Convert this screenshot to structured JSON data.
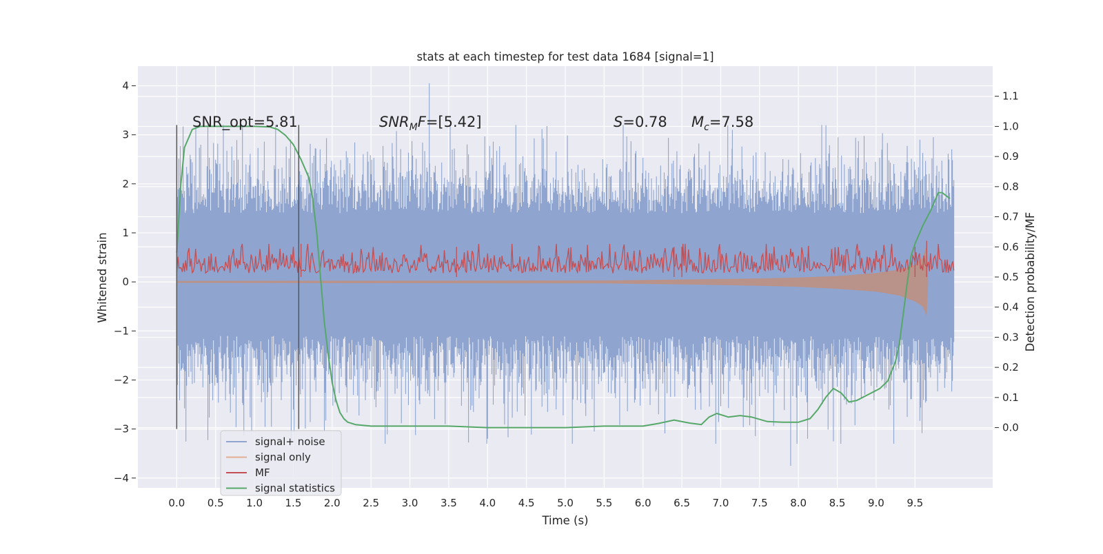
{
  "chart_data": {
    "type": "line",
    "title": "stats at each timestep for test data 1684 [signal=1]",
    "xlabel": "Time (s)",
    "ylabel_left": "Whitened strain",
    "ylabel_right": "Detection probability/MF",
    "xlim": [
      -0.5,
      10.5
    ],
    "ylim_left": [
      -4.2,
      4.4
    ],
    "ylim_right": [
      -0.2,
      1.2
    ],
    "x_ticks": [
      "0.0",
      "0.5",
      "1.0",
      "1.5",
      "2.0",
      "2.5",
      "3.0",
      "3.5",
      "4.0",
      "4.5",
      "5.0",
      "5.5",
      "6.0",
      "6.5",
      "7.0",
      "7.5",
      "8.0",
      "8.5",
      "9.0",
      "9.5"
    ],
    "y_ticks_left": [
      "4",
      "3",
      "2",
      "1",
      "0",
      "−1",
      "−2",
      "−3",
      "−4"
    ],
    "y_ticks_right": [
      "1.1",
      "1.0",
      "0.9",
      "0.8",
      "0.7",
      "0.6",
      "0.5",
      "0.4",
      "0.3",
      "0.2",
      "0.1",
      "0.0"
    ],
    "grid": true,
    "legend_position": "bottom-left",
    "series": [
      {
        "name": "signal+ noise",
        "color": "#8fa5cf",
        "axis": "left",
        "x": [
          0.0,
          10.0
        ],
        "envelope": {
          "typical_min": -2.0,
          "typical_max": 2.0,
          "dense_band_min": -1.1,
          "dense_band_max": 1.4,
          "extreme_max": 4.05,
          "extreme_max_at": 3.25,
          "extreme_min": -3.75,
          "extreme_min_at": 7.9
        }
      },
      {
        "name": "signal only",
        "color": "#dd8452",
        "axis": "left",
        "x": [
          0.0,
          5.5,
          6.5,
          7.5,
          8.0,
          8.5,
          9.0,
          9.3,
          9.5,
          9.6,
          9.65,
          9.67
        ],
        "upper": [
          0.02,
          0.03,
          0.05,
          0.07,
          0.09,
          0.12,
          0.18,
          0.25,
          0.35,
          0.5,
          0.75,
          0.0
        ],
        "lower": [
          -0.02,
          -0.03,
          -0.05,
          -0.08,
          -0.1,
          -0.14,
          -0.2,
          -0.28,
          -0.4,
          -0.5,
          -0.7,
          0.0
        ]
      },
      {
        "name": "MF",
        "color": "#c44e52",
        "axis": "right",
        "x": [
          0.0,
          10.0
        ],
        "typical_min": 0.49,
        "typical_max": 0.58,
        "spikes": [
          [
            1.6,
            0.61
          ],
          [
            3.6,
            0.6
          ],
          [
            6.4,
            0.6
          ],
          [
            6.5,
            0.6
          ],
          [
            9.5,
            0.6
          ],
          [
            9.65,
            0.62
          ]
        ]
      },
      {
        "name": "signal statistics",
        "color": "#55a868",
        "axis": "right",
        "x": [
          0.0,
          0.05,
          0.1,
          0.15,
          0.2,
          0.3,
          0.5,
          0.8,
          1.0,
          1.2,
          1.3,
          1.4,
          1.5,
          1.6,
          1.7,
          1.75,
          1.8,
          1.85,
          1.9,
          1.95,
          2.0,
          2.05,
          2.1,
          2.15,
          2.2,
          2.3,
          2.5,
          3.0,
          3.5,
          4.0,
          4.5,
          5.0,
          5.5,
          6.0,
          6.2,
          6.4,
          6.6,
          6.75,
          6.85,
          6.95,
          7.1,
          7.25,
          7.4,
          7.6,
          7.8,
          8.0,
          8.15,
          8.25,
          8.35,
          8.45,
          8.55,
          8.65,
          8.75,
          8.9,
          9.05,
          9.15,
          9.25,
          9.3,
          9.35,
          9.4,
          9.45,
          9.5,
          9.6,
          9.7,
          9.75,
          9.8,
          9.85,
          9.9,
          9.95
        ],
        "values": [
          0.58,
          0.8,
          0.93,
          0.96,
          0.99,
          1.0,
          1.0,
          1.0,
          1.0,
          0.998,
          0.99,
          0.97,
          0.94,
          0.89,
          0.83,
          0.76,
          0.65,
          0.5,
          0.35,
          0.24,
          0.15,
          0.09,
          0.05,
          0.03,
          0.018,
          0.01,
          0.005,
          0.005,
          0.005,
          0.0,
          0.0,
          0.0,
          0.005,
          0.005,
          0.014,
          0.025,
          0.015,
          0.01,
          0.035,
          0.047,
          0.035,
          0.04,
          0.035,
          0.02,
          0.018,
          0.018,
          0.03,
          0.06,
          0.1,
          0.13,
          0.115,
          0.085,
          0.09,
          0.11,
          0.13,
          0.155,
          0.22,
          0.28,
          0.38,
          0.48,
          0.57,
          0.61,
          0.67,
          0.72,
          0.75,
          0.78,
          0.78,
          0.77,
          0.76
        ]
      }
    ],
    "vertical_lines": [
      {
        "x": 0.0,
        "y_range": [
          -3.0,
          3.2
        ]
      },
      {
        "x": 1.57,
        "y_range": [
          -3.0,
          3.2
        ]
      }
    ],
    "annotations": {
      "snr_opt": "SNR_opt=5.81",
      "snr_mf_prefix": "SNR",
      "snr_mf_sub": "M",
      "snr_mf_suffix": "F=[5.42]",
      "s_label": "S",
      "s_value": "=0.78",
      "mc_label": "M",
      "mc_sub": "c",
      "mc_value": "=7.58"
    }
  }
}
